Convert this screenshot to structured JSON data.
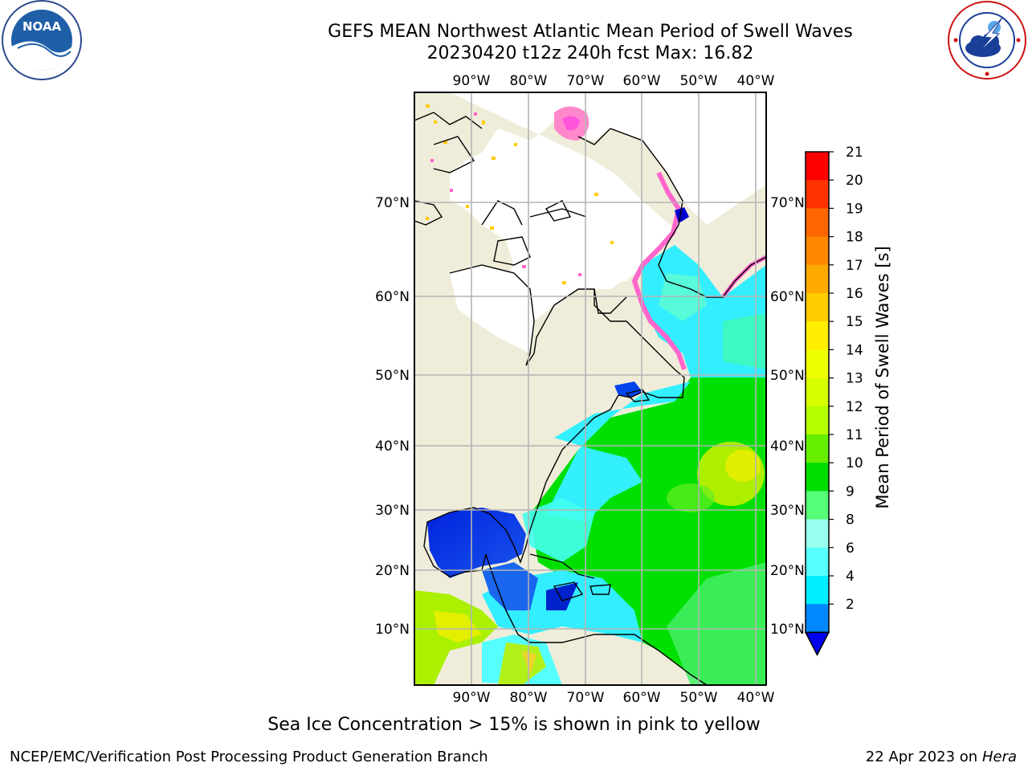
{
  "title": {
    "line1": "GEFS MEAN Northwest Atlantic Mean Period of Swell Waves",
    "line2": "20230420 t12z 240h fcst   Max: 16.82"
  },
  "logos": {
    "left": {
      "icon": "noaa-logo",
      "text": "NOAA"
    },
    "right": {
      "icon": "nws-logo"
    }
  },
  "map": {
    "longitude_ticks": [
      "90°W",
      "80°W",
      "70°W",
      "60°W",
      "50°W",
      "40°W"
    ],
    "latitude_ticks": [
      "70°N",
      "60°N",
      "50°N",
      "40°N",
      "30°N",
      "20°N",
      "10°N"
    ],
    "colors": {
      "land": "#efedda",
      "ice_free_arctic": "#ffffff",
      "grid": "#b4b4b4",
      "coast": "#000000"
    }
  },
  "colorbar": {
    "label": "Mean Period of Swell Waves [s]",
    "ticks": [
      "21",
      "20",
      "19",
      "18",
      "17",
      "16",
      "15",
      "14",
      "13",
      "12",
      "11",
      "10",
      "9",
      "8",
      "6",
      "4",
      "2"
    ],
    "colors": [
      "#ff0000",
      "#ff3300",
      "#ff6600",
      "#ff8800",
      "#ffaa00",
      "#ffcc00",
      "#ffee00",
      "#f0ff00",
      "#d8ff00",
      "#b4ff00",
      "#66ee00",
      "#00dd00",
      "#55ff77",
      "#99ffee",
      "#55ffff",
      "#00eeff",
      "#0088ff"
    ],
    "under_color": "#0000ee"
  },
  "footer": {
    "note": "Sea Ice Concentration > 15% is shown in pink to yellow",
    "credit_left": "NCEP/EMC/Verification Post Processing Product Generation Branch",
    "credit_right_date": "22 Apr 2023 on",
    "credit_right_machine": "Hera"
  }
}
